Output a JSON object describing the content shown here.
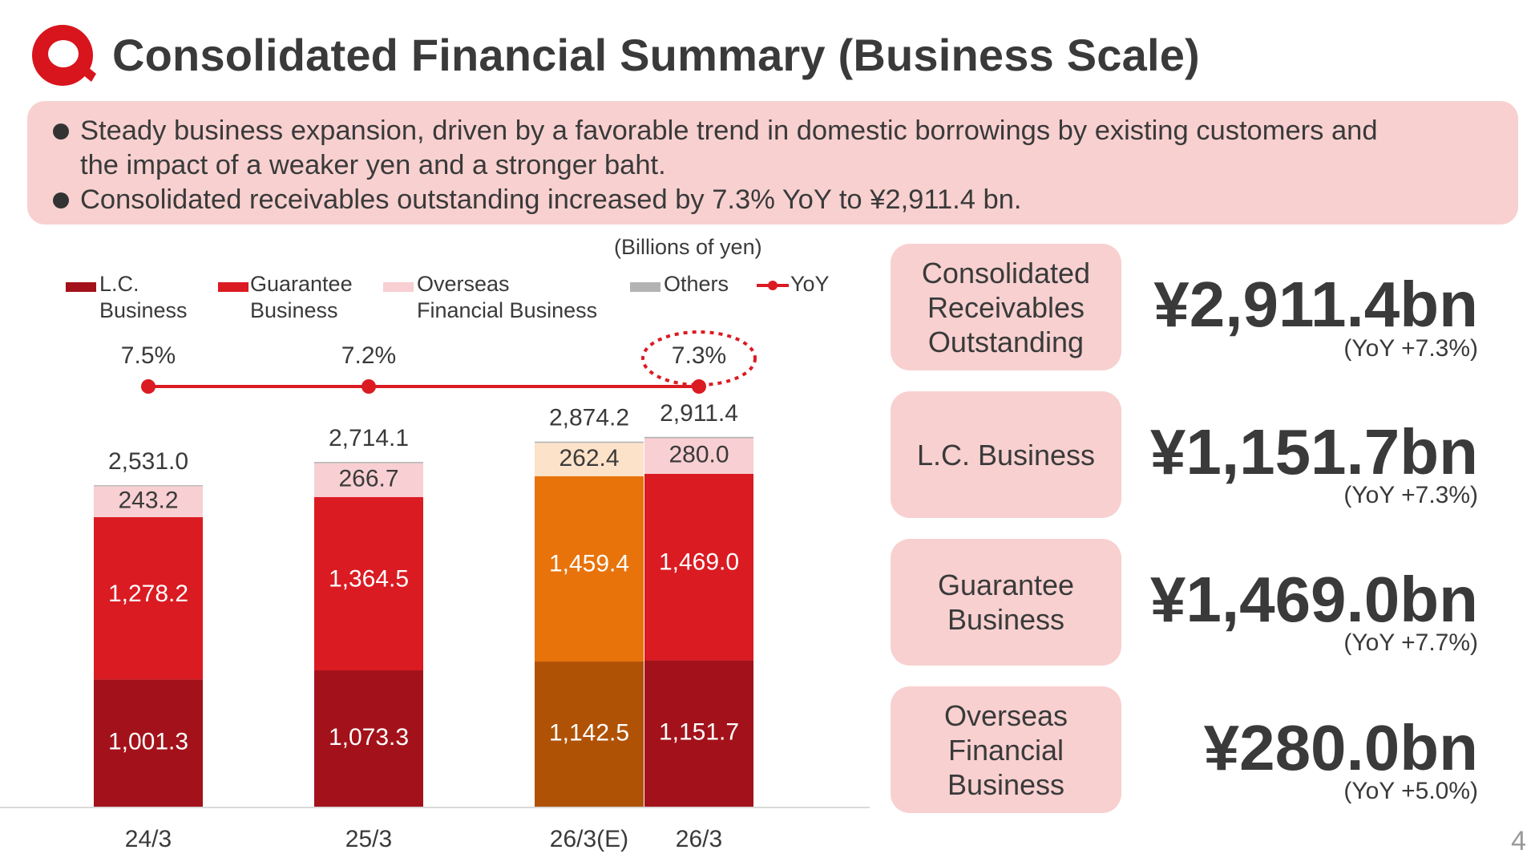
{
  "title": "Consolidated Financial Summary (Business Scale)",
  "summary": {
    "bullet_1_line_1": "Steady business expansion, driven by a favorable trend in domestic borrowings by existing customers and",
    "bullet_1_line_2": "the impact of a weaker yen and a stronger baht.",
    "bullet_2": "Consolidated receivables outstanding increased by 7.3% YoY to ¥2,911.4 bn."
  },
  "kpis": [
    {
      "label": "Consolidated Receivables Outstanding",
      "value": "¥2,911.4bn",
      "yoy": "(YoY +7.3%)"
    },
    {
      "label": "L.C. Business",
      "value": "¥1,151.7bn",
      "yoy": "(YoY +7.3%)"
    },
    {
      "label": "Guarantee Business",
      "value": "¥1,469.0bn",
      "yoy": "(YoY +7.7%)"
    },
    {
      "label": "Overseas Financial Business",
      "value": "¥280.0bn",
      "yoy": "(YoY +5.0%)"
    }
  ],
  "page_number": "4",
  "colors": {
    "lc": "#a3121a",
    "guarantee": "#da1b22",
    "overseas": "#f8cfd2",
    "others": "#b3b3b3",
    "yoy_line": "#da1b22",
    "forecast_lc": "#b05206",
    "forecast_guarantee": "#e8730b",
    "forecast_overseas": "#fce2c9",
    "panel": "#f8d0d0",
    "brand": "#d8141c"
  },
  "chart_data": {
    "type": "bar",
    "stacked": true,
    "units": "(Billions of yen)",
    "categories": [
      "24/3",
      "25/3",
      "26/3(E)",
      "26/3"
    ],
    "forecast_category": "26/3(E)",
    "series": [
      {
        "name": "L.C. Business",
        "values": [
          1001.3,
          1073.3,
          1142.5,
          1151.7
        ],
        "labels": [
          "1,001.3",
          "1,073.3",
          "1,142.5",
          "1,151.7"
        ]
      },
      {
        "name": "Guarantee Business",
        "values": [
          1278.2,
          1364.5,
          1459.4,
          1469.0
        ],
        "labels": [
          "1,278.2",
          "1,364.5",
          "1,459.4",
          "1,469.0"
        ]
      },
      {
        "name": "Overseas Financial Business",
        "values": [
          243.2,
          266.7,
          262.4,
          280.0
        ],
        "labels": [
          "243.2",
          "266.7",
          "262.4",
          "280.0"
        ]
      },
      {
        "name": "Others",
        "values": [
          8.3,
          9.6,
          9.9,
          10.7
        ]
      }
    ],
    "totals": [
      2531.0,
      2714.1,
      2874.2,
      2911.4
    ],
    "total_labels": [
      "2,531.0",
      "2,714.1",
      "2,874.2",
      "2,911.4"
    ],
    "yoy": {
      "name": "YoY",
      "categories": [
        "24/3",
        "25/3",
        "26/3"
      ],
      "values": [
        7.5,
        7.2,
        7.3
      ],
      "labels": [
        "7.5%",
        "7.2%",
        "7.3%"
      ],
      "highlight": "26/3"
    },
    "legend": [
      {
        "key": "lc",
        "line1": "L.C.",
        "line2": "Business"
      },
      {
        "key": "guarantee",
        "line1": "Guarantee",
        "line2": "Business"
      },
      {
        "key": "overseas",
        "line1": "Overseas",
        "line2": "Financial Business"
      },
      {
        "key": "others",
        "line1": "Others",
        "line2": ""
      },
      {
        "key": "yoy",
        "line1": "YoY",
        "line2": ""
      }
    ],
    "legend_position": "top",
    "grid": false
  }
}
